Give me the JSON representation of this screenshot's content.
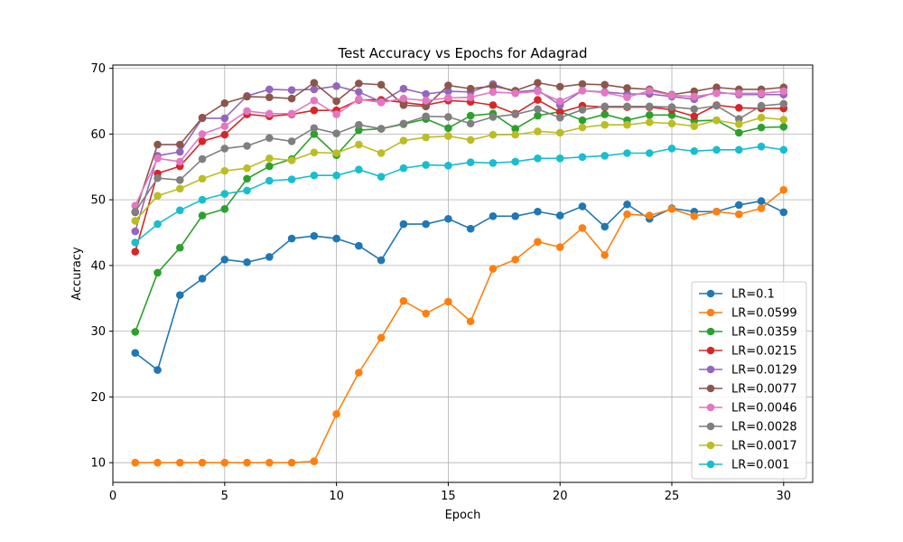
{
  "chart_data": {
    "type": "line",
    "title": "Test Accuracy vs Epochs for Adagrad",
    "xlabel": "Epoch",
    "ylabel": "Accuracy",
    "xlim": [
      0,
      31.3
    ],
    "ylim": [
      7.0,
      70.5
    ],
    "xticks": [
      0,
      5,
      10,
      15,
      20,
      25,
      30
    ],
    "yticks": [
      10,
      20,
      30,
      40,
      50,
      60,
      70
    ],
    "grid": true,
    "legend_position": "lower-right",
    "x": [
      1,
      2,
      3,
      4,
      5,
      6,
      7,
      8,
      9,
      10,
      11,
      12,
      13,
      14,
      15,
      16,
      17,
      18,
      19,
      20,
      21,
      22,
      23,
      24,
      25,
      26,
      27,
      28,
      29,
      30
    ],
    "series": [
      {
        "name": "LR=0.1",
        "color": "#1f77b4",
        "values": [
          26.7,
          24.1,
          35.5,
          38.0,
          40.9,
          40.5,
          41.3,
          44.1,
          44.5,
          44.1,
          43.0,
          40.8,
          46.3,
          46.3,
          47.1,
          45.6,
          47.5,
          47.5,
          48.2,
          47.6,
          49.0,
          45.9,
          49.3,
          47.1,
          48.7,
          48.2,
          48.2,
          49.2,
          49.8,
          48.1
        ]
      },
      {
        "name": "LR=0.0599",
        "color": "#ff7f0e",
        "values": [
          10.0,
          10.0,
          10.0,
          10.0,
          10.0,
          10.0,
          10.0,
          10.0,
          10.2,
          17.4,
          23.7,
          29.0,
          34.6,
          32.7,
          34.5,
          31.5,
          39.5,
          40.9,
          43.6,
          42.8,
          45.7,
          41.6,
          47.8,
          47.6,
          48.6,
          47.5,
          48.2,
          47.8,
          48.7,
          51.5
        ]
      },
      {
        "name": "LR=0.0359",
        "color": "#2ca02c",
        "values": [
          29.9,
          38.9,
          42.7,
          47.6,
          48.6,
          53.2,
          55.1,
          56.2,
          60.0,
          56.8,
          60.6,
          60.8,
          61.5,
          62.3,
          60.9,
          62.8,
          63.1,
          60.8,
          62.8,
          63.4,
          62.1,
          63.0,
          62.1,
          62.9,
          62.9,
          62.0,
          62.1,
          60.2,
          61.0,
          61.1
        ]
      },
      {
        "name": "LR=0.0215",
        "color": "#d62728",
        "values": [
          42.1,
          54.0,
          55.1,
          58.9,
          59.9,
          63.0,
          62.7,
          63.0,
          63.6,
          63.6,
          65.2,
          65.2,
          64.8,
          64.4,
          65.1,
          64.9,
          64.4,
          63.1,
          65.2,
          63.3,
          64.3,
          64.1,
          64.1,
          64.1,
          63.7,
          62.7,
          64.4,
          64.0,
          63.9,
          63.9
        ]
      },
      {
        "name": "LR=0.0129",
        "color": "#9467bd",
        "values": [
          45.2,
          56.7,
          57.3,
          62.4,
          62.4,
          65.8,
          66.8,
          66.7,
          66.8,
          67.3,
          66.4,
          64.9,
          66.9,
          66.1,
          66.5,
          66.4,
          67.6,
          66.4,
          66.7,
          64.4,
          66.6,
          66.4,
          66.1,
          66.1,
          65.7,
          65.3,
          66.4,
          66.0,
          66.0,
          66.0
        ]
      },
      {
        "name": "LR=0.0077",
        "color": "#8c564b",
        "values": [
          48.1,
          58.4,
          58.4,
          62.5,
          64.7,
          65.7,
          65.6,
          65.4,
          67.8,
          65.0,
          67.7,
          67.5,
          64.4,
          64.2,
          67.4,
          66.9,
          67.3,
          66.6,
          67.8,
          67.2,
          67.6,
          67.5,
          67.0,
          66.8,
          66.0,
          66.5,
          67.1,
          66.8,
          66.8,
          67.1
        ]
      },
      {
        "name": "LR=0.0046",
        "color": "#e377c2",
        "values": [
          49.1,
          56.3,
          55.8,
          60.0,
          61.2,
          63.5,
          63.1,
          63.1,
          65.1,
          63.0,
          65.3,
          64.8,
          65.4,
          65.1,
          65.5,
          65.6,
          66.4,
          66.2,
          66.5,
          65.0,
          66.6,
          66.3,
          65.6,
          66.6,
          65.9,
          65.7,
          66.2,
          66.2,
          66.2,
          66.5
        ]
      },
      {
        "name": "LR=0.0028",
        "color": "#7f7f7f",
        "values": [
          48.2,
          53.3,
          53.0,
          56.2,
          57.8,
          58.2,
          59.4,
          58.9,
          60.9,
          60.1,
          61.4,
          60.8,
          61.6,
          62.7,
          62.6,
          61.6,
          62.6,
          63.0,
          63.8,
          62.5,
          63.7,
          64.2,
          64.2,
          64.2,
          64.1,
          63.8,
          64.3,
          62.3,
          64.3,
          64.6
        ]
      },
      {
        "name": "LR=0.0017",
        "color": "#bcbd22",
        "values": [
          46.8,
          50.6,
          51.7,
          53.2,
          54.4,
          54.8,
          56.3,
          56.0,
          57.2,
          57.1,
          58.4,
          57.1,
          59.0,
          59.5,
          59.7,
          59.1,
          59.9,
          59.9,
          60.4,
          60.2,
          61.0,
          61.4,
          61.4,
          61.8,
          61.6,
          61.2,
          62.1,
          61.5,
          62.5,
          62.2
        ]
      },
      {
        "name": "LR=0.001",
        "color": "#17becf",
        "values": [
          43.5,
          46.3,
          48.4,
          50.0,
          50.9,
          51.4,
          52.9,
          53.1,
          53.7,
          53.7,
          54.6,
          53.5,
          54.8,
          55.3,
          55.2,
          55.7,
          55.6,
          55.8,
          56.3,
          56.3,
          56.5,
          56.7,
          57.1,
          57.1,
          57.8,
          57.4,
          57.6,
          57.6,
          58.1,
          57.6
        ]
      }
    ]
  }
}
